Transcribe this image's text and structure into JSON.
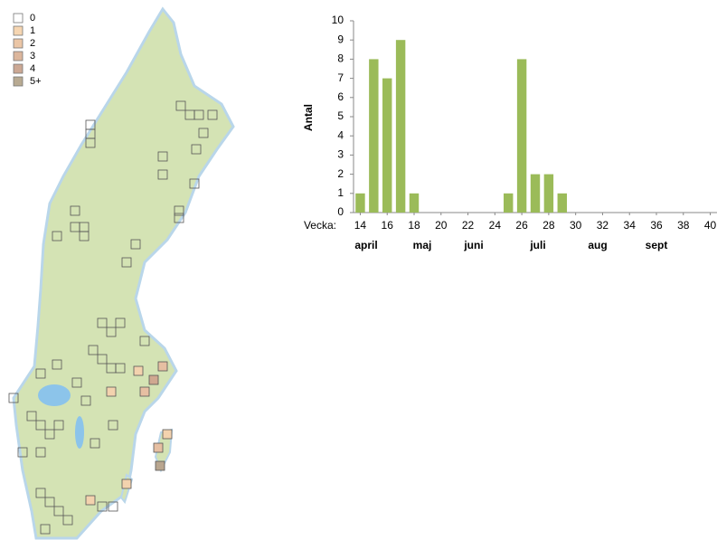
{
  "map_legend": [
    "0",
    "1",
    "2",
    "3",
    "4",
    "5+"
  ],
  "chart_data": {
    "type": "bar",
    "x_label": "Vecka:",
    "y_label": "Antal",
    "x": [
      14,
      15,
      16,
      17,
      18,
      25,
      26,
      27,
      28,
      29
    ],
    "values": [
      1,
      8,
      7,
      9,
      1,
      1,
      8,
      2,
      2,
      1
    ],
    "color": "#9bbb59",
    "xlim": [
      13.5,
      40.5
    ],
    "xticks": [
      14,
      16,
      18,
      20,
      22,
      24,
      26,
      28,
      30,
      32,
      34,
      36,
      38,
      40
    ],
    "ylim": [
      0,
      10
    ],
    "yticks": [
      0,
      1,
      2,
      3,
      4,
      5,
      6,
      7,
      8,
      9,
      10
    ],
    "months": [
      "april",
      "maj",
      "juni",
      "juli",
      "aug",
      "sept"
    ],
    "grid": false
  }
}
